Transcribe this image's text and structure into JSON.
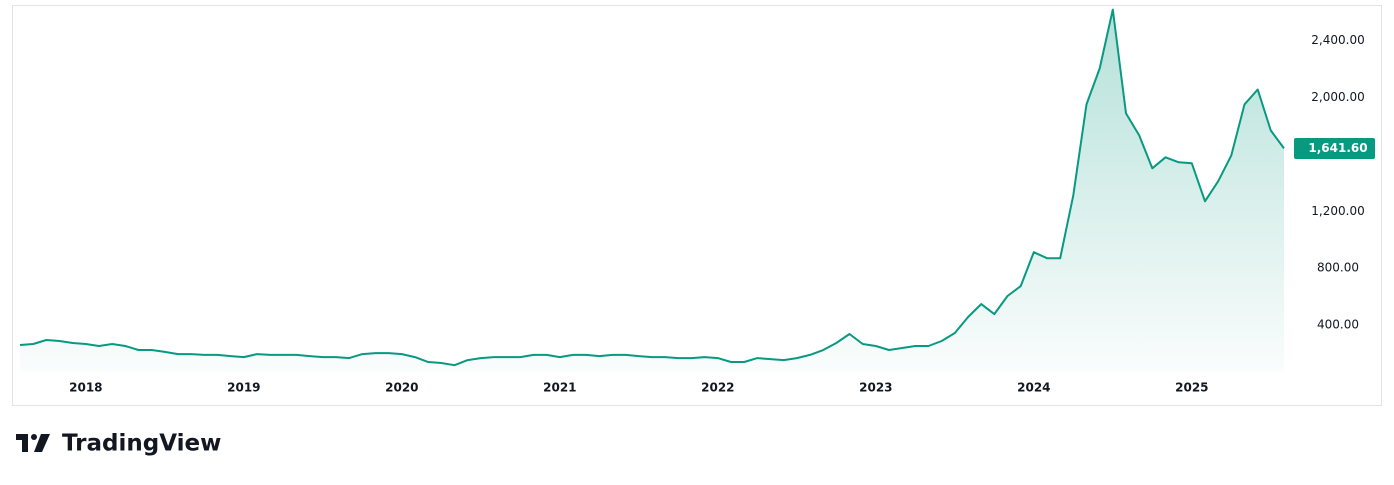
{
  "chart_data": {
    "type": "area",
    "categories": [
      null,
      null,
      null,
      null,
      null,
      "2018",
      null,
      null,
      null,
      null,
      null,
      null,
      null,
      null,
      null,
      null,
      null,
      "2019",
      null,
      null,
      null,
      null,
      null,
      null,
      null,
      null,
      null,
      null,
      null,
      "2020",
      null,
      null,
      null,
      null,
      null,
      null,
      null,
      null,
      null,
      null,
      null,
      "2021",
      null,
      null,
      null,
      null,
      null,
      null,
      null,
      null,
      null,
      null,
      null,
      "2022",
      null,
      null,
      null,
      null,
      null,
      null,
      null,
      null,
      null,
      null,
      null,
      "2023",
      null,
      null,
      null,
      null,
      null,
      null,
      null,
      null,
      null,
      null,
      null,
      "2024",
      null,
      null,
      null,
      null,
      null,
      null,
      null,
      null,
      null,
      null,
      null,
      "2025",
      null,
      null,
      null,
      null,
      null,
      null,
      null
    ],
    "values": [
      260,
      267,
      295,
      288,
      274,
      267,
      253,
      267,
      253,
      225,
      225,
      211,
      196,
      196,
      190,
      190,
      182,
      175,
      196,
      190,
      190,
      190,
      182,
      175,
      175,
      168,
      196,
      203,
      203,
      196,
      175,
      140,
      133,
      118,
      154,
      168,
      175,
      175,
      175,
      190,
      190,
      175,
      190,
      190,
      182,
      190,
      190,
      182,
      175,
      175,
      168,
      168,
      175,
      168,
      140,
      140,
      168,
      161,
      154,
      168,
      190,
      225,
      274,
      337,
      267,
      253,
      225,
      239,
      253,
      253,
      288,
      344,
      456,
      547,
      477,
      604,
      674,
      912,
      870,
      870,
      1312,
      1951,
      2204,
      2618,
      1888,
      1733,
      1502,
      1579,
      1544,
      1537,
      1270,
      1411,
      1593,
      1951,
      2056,
      1768,
      1641.6
    ],
    "value_labels": [
      null,
      null,
      null,
      null,
      null,
      null,
      null,
      null,
      null,
      null,
      null,
      null,
      null,
      null,
      null,
      null,
      null,
      null,
      null,
      null,
      null,
      null,
      null,
      null,
      null,
      null,
      null,
      null,
      null,
      null,
      null,
      null,
      null,
      null,
      null,
      null,
      null,
      null,
      null,
      null,
      null,
      null,
      null,
      null,
      null,
      null,
      null,
      null,
      null,
      null,
      null,
      null,
      null,
      null,
      null,
      null,
      null,
      null,
      null,
      null,
      null,
      null,
      null,
      null,
      null,
      null,
      null,
      null,
      null,
      null,
      null,
      null,
      null,
      null,
      null,
      null,
      null,
      null,
      null,
      null,
      null,
      null,
      null,
      null,
      null,
      null,
      null,
      null,
      null,
      null,
      null,
      null,
      null,
      null,
      null,
      null,
      "1,641.60"
    ],
    "color": "#089981",
    "ylim": [
      70,
      2650
    ],
    "yticks": [
      {
        "value": 400,
        "label": "400.00"
      },
      {
        "value": 800,
        "label": "800.00"
      },
      {
        "value": 1200,
        "label": "1,200.00"
      },
      {
        "value": 2000,
        "label": "2,000.00"
      },
      {
        "value": 2400,
        "label": "2,400.00"
      }
    ]
  },
  "brand": "TradingView"
}
